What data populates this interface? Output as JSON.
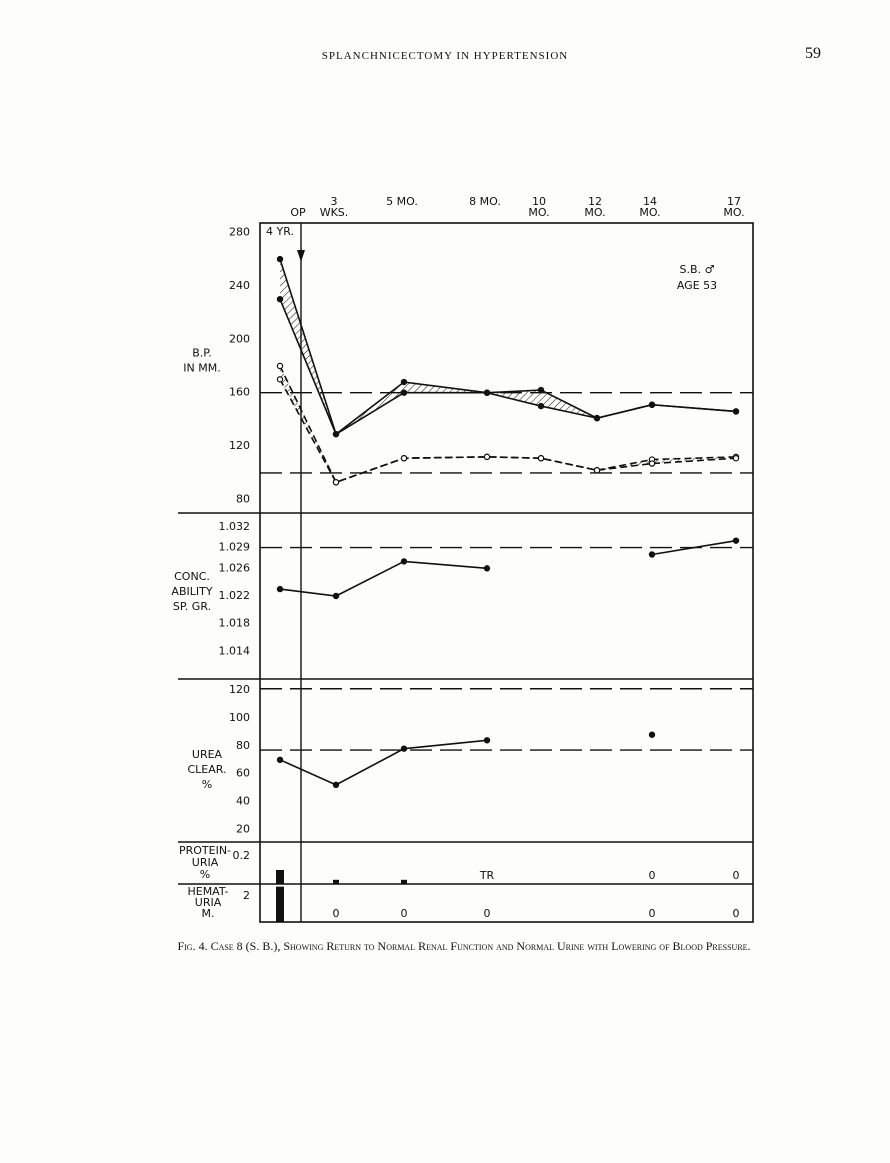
{
  "header": "SPLANCHNICECTOMY IN HYPERTENSION",
  "page_number": "59",
  "chart_data": [
    {
      "type": "line",
      "categories": [
        "4 YR.",
        "3 WKS.",
        "5 MO.",
        "8 MO.",
        "10 MO.",
        "12 MO.",
        "14 MO.",
        "17 MO."
      ],
      "op_label": "OP",
      "ylabel": [
        "B.P.",
        "IN MM."
      ],
      "annotation": [
        "S.B. ♂",
        "AGE 53"
      ],
      "ylim": [
        70,
        287
      ],
      "yticks": [
        80,
        120,
        160,
        200,
        240,
        280
      ],
      "reference_lines": [
        160,
        100
      ],
      "series": [
        {
          "color": "#111",
          "marker": "filled",
          "dash": false,
          "values": [
            260,
            129,
            168,
            160,
            162,
            141,
            151,
            146
          ]
        },
        {
          "color": "#111",
          "marker": "filled",
          "dash": false,
          "values": [
            230,
            129,
            160,
            160,
            150,
            141,
            151,
            146
          ]
        },
        {
          "color": "#111",
          "marker": "open",
          "dash": true,
          "values": [
            180,
            93,
            111,
            112,
            111,
            102,
            110,
            112
          ]
        },
        {
          "color": "#111",
          "marker": "open",
          "dash": true,
          "values": [
            170,
            93,
            111,
            112,
            111,
            102,
            107,
            111
          ]
        }
      ]
    },
    {
      "type": "line",
      "ylabel": [
        "CONC.",
        "ABILITY",
        "SP. GR."
      ],
      "ylim": [
        1.01,
        1.034
      ],
      "yticks": [
        1.032,
        1.029,
        1.026,
        1.022,
        1.018,
        1.014
      ],
      "reference_lines": [
        1.029
      ],
      "series": [
        {
          "color": "#111",
          "marker": "filled",
          "dash": false,
          "values": [
            1.023,
            1.022,
            1.027,
            1.026,
            null,
            null,
            1.028,
            1.03
          ]
        }
      ]
    },
    {
      "type": "line",
      "ylabel": [
        "UREA",
        "CLEAR.",
        "%"
      ],
      "ylim": [
        11,
        128
      ],
      "yticks": [
        120,
        100,
        80,
        60,
        40,
        20
      ],
      "reference_lines": [
        121,
        77
      ],
      "series": [
        {
          "color": "#111",
          "marker": "filled",
          "dash": false,
          "values": [
            70,
            52,
            78,
            84,
            null,
            null,
            88,
            null
          ]
        }
      ]
    },
    {
      "type": "bar",
      "ylabel": [
        "PROTEIN-",
        "URIA",
        "%"
      ],
      "ylim": [
        0,
        0.3
      ],
      "yticks": [
        0.2
      ],
      "color": "#111",
      "values": [
        0.1,
        0.03,
        0.03,
        null,
        null,
        null,
        0,
        0
      ],
      "value_labels": [
        null,
        null,
        null,
        "TR",
        null,
        null,
        null,
        null
      ]
    },
    {
      "type": "bar",
      "ylabel": [
        "HEMAT-",
        "URIA",
        "M."
      ],
      "ylim": [
        0,
        2.9
      ],
      "yticks": [
        2
      ],
      "color": "#111",
      "values": [
        2.7,
        0,
        0,
        0,
        null,
        null,
        0,
        0
      ]
    }
  ],
  "caption": "Fig. 4. Case 8 (S. B.), Showing Return to Normal Renal Function and Normal Urine with Lowering of Blood Pressure."
}
